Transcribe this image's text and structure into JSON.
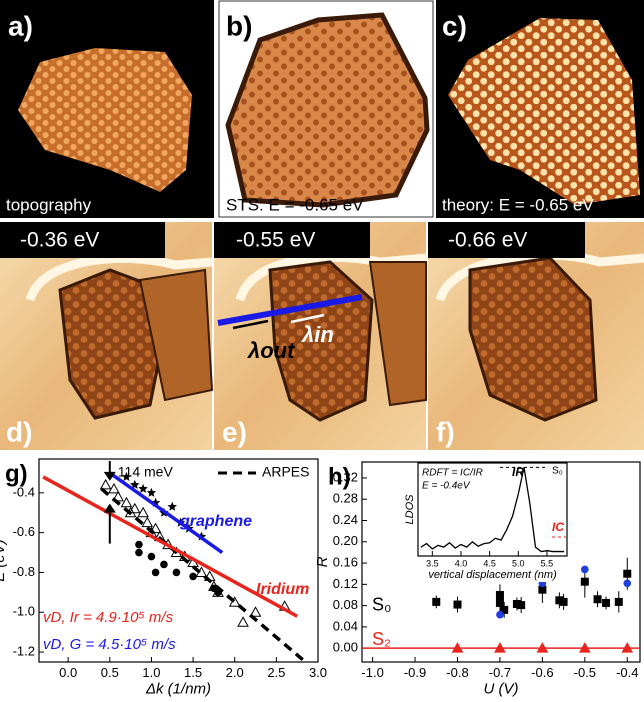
{
  "panels": [
    {
      "label": "a)",
      "caption": "topography"
    },
    {
      "label": "b)",
      "caption": "STS: E = -0.65 eV"
    },
    {
      "label": "c)",
      "caption": "theory: E = -0.65 eV"
    },
    {
      "label": "d)",
      "energy": "-0.36 eV"
    },
    {
      "label": "e)",
      "energy": "-0.55 eV",
      "annotations": [
        "λout",
        "λin"
      ]
    },
    {
      "label": "f)",
      "energy": "-0.66 eV"
    }
  ],
  "chart_data": [
    {
      "type": "scatter",
      "panel_label": "g)",
      "xlabel": "Δk (1/nm)",
      "ylabel": "E (eV)",
      "xlim": [
        -0.35,
        3.0
      ],
      "ylim": [
        -1.25,
        -0.23
      ],
      "xticks": [
        {
          "value": 0,
          "label": "0.0"
        },
        0.5,
        {
          "value": 1,
          "label": "1.0"
        },
        1.5,
        {
          "value": 2,
          "label": "2.0"
        },
        2.5,
        {
          "value": 3,
          "label": "3.0"
        }
      ],
      "yticks": [
        -0.4,
        -0.6,
        -0.8,
        {
          "value": -1,
          "label": "-1.0"
        },
        -1.2
      ],
      "gap": {
        "text": "114 meV",
        "x": 0.5,
        "y_range": [
          -0.34,
          -0.454
        ]
      },
      "series": [
        {
          "marker": "triangle",
          "color": "#000000",
          "x": [
            0.45,
            0.55,
            0.6,
            0.7,
            0.75,
            0.8,
            0.9,
            0.95,
            1.0,
            1.05,
            1.1,
            1.2,
            1.3,
            1.4,
            1.5,
            1.6,
            1.7,
            1.75,
            1.8,
            2.0,
            2.1,
            2.25,
            2.6
          ],
          "values": [
            -0.36,
            -0.38,
            -0.42,
            -0.45,
            -0.5,
            -0.48,
            -0.5,
            -0.55,
            -0.6,
            -0.58,
            -0.62,
            -0.66,
            -0.7,
            -0.72,
            -0.75,
            -0.8,
            -0.82,
            -0.87,
            -0.9,
            -0.95,
            -1.05,
            -1.0,
            -0.97
          ]
        },
        {
          "marker": "star",
          "color": "#000000",
          "x": [
            0.7,
            0.8,
            0.9,
            1.0,
            1.05,
            1.15,
            1.25,
            1.35,
            1.45,
            1.6
          ],
          "values": [
            -0.32,
            -0.36,
            -0.38,
            -0.4,
            -0.45,
            -0.5,
            -0.47,
            -0.55,
            -0.58,
            -0.62
          ]
        },
        {
          "marker": "circle",
          "color": "#000000",
          "x": [
            0.85,
            0.85,
            1.0,
            1.05,
            1.15,
            1.3,
            1.5,
            1.75,
            1.8
          ],
          "values": [
            -0.66,
            -0.7,
            -0.72,
            -0.8,
            -0.76,
            -0.8,
            -0.82,
            -0.88,
            -0.9
          ]
        },
        {
          "name": "ARPES",
          "color": "#000000",
          "dash": true,
          "x": [
            0.4,
            2.85
          ],
          "values": [
            -0.38,
            -1.25
          ]
        },
        {
          "label": "graphene",
          "velocity": "vD, G = 4.5·10⁵ m/s",
          "color": "#1a1ae6",
          "x": [
            0.5,
            1.85
          ],
          "values": [
            -0.3,
            -0.7
          ]
        },
        {
          "label": "Iridium",
          "velocity": "vD, Ir = 4.9·10⁵ m/s",
          "color": "#e8241c",
          "x": [
            -0.3,
            2.75
          ],
          "values": [
            -0.32,
            -1.02
          ]
        }
      ]
    },
    {
      "type": "scatter",
      "panel_label": "h)",
      "xlabel": "U (V)",
      "ylabel": "R",
      "xlim": [
        -1.025,
        -0.37
      ],
      "ylim": [
        -0.026,
        0.35
      ],
      "xticks": [
        {
          "value": -1,
          "label": "-1.0"
        },
        -0.9,
        -0.8,
        -0.7,
        -0.6,
        -0.5,
        -0.4
      ],
      "yticks": [
        {
          "value": 0,
          "label": "0.00"
        },
        0.04,
        0.08,
        0.12,
        0.16,
        {
          "value": 0.2,
          "label": "0.20"
        },
        0.24,
        0.28,
        0.32
      ],
      "series": [
        {
          "label": "S₀",
          "marker": "square",
          "color": "#000000",
          "x": [
            -0.85,
            -0.8,
            -0.7,
            -0.7,
            -0.69,
            -0.66,
            -0.65,
            -0.6,
            -0.56,
            -0.55,
            -0.5,
            -0.47,
            -0.45,
            -0.42,
            -0.4
          ],
          "values": [
            0.087,
            0.082,
            0.1,
            0.085,
            0.072,
            0.083,
            0.081,
            0.11,
            0.09,
            0.087,
            0.125,
            0.092,
            0.085,
            0.087,
            0.14
          ],
          "errors": [
            0.012,
            0.015,
            0.02,
            0.02,
            0.015,
            0.012,
            0.015,
            0.025,
            0.015,
            0.015,
            0.03,
            0.015,
            0.012,
            0.02,
            0.03
          ]
        },
        {
          "marker": "circle",
          "color": "#1f3fe0",
          "x": [
            -0.7,
            -0.6,
            -0.5,
            -0.4
          ],
          "values": [
            0.063,
            0.122,
            0.148,
            0.122
          ]
        },
        {
          "label": "S₂",
          "marker": "triangle",
          "color": "#e8241c",
          "line": true,
          "x": [
            -0.8,
            -0.7,
            -0.6,
            -0.5,
            -0.4
          ],
          "values": [
            0,
            0,
            0,
            0,
            0
          ]
        }
      ],
      "inset": {
        "type": "line",
        "xlabel": "vertical displacement (nm)",
        "ylabel": "LDOS",
        "xlim": [
          3.25,
          5.85
        ],
        "ylim": [
          0,
          1.05
        ],
        "xticks": [
          3.5,
          {
            "value": 4,
            "label": "4.0"
          },
          4.5,
          {
            "value": 5,
            "label": "5.0"
          },
          5.5
        ],
        "formula": "RDFT = IC/IR",
        "energy": "E = -0.4eV",
        "ir_label": "IR",
        "ic_label": "IC",
        "state": "S₀",
        "x": [
          3.3,
          3.4,
          3.5,
          3.6,
          3.7,
          3.8,
          3.9,
          4.0,
          4.1,
          4.2,
          4.3,
          4.4,
          4.5,
          4.6,
          4.7,
          4.8,
          4.9,
          5.0,
          5.1,
          5.2,
          5.3,
          5.4,
          5.5,
          5.6,
          5.7,
          5.8
        ],
        "values": [
          0.1,
          0.14,
          0.08,
          0.12,
          0.1,
          0.15,
          0.09,
          0.13,
          0.1,
          0.16,
          0.11,
          0.14,
          0.15,
          0.2,
          0.18,
          0.3,
          0.45,
          0.7,
          1.0,
          0.6,
          0.1,
          0.05,
          0.06,
          0.05,
          0.05,
          0.05
        ]
      }
    }
  ]
}
